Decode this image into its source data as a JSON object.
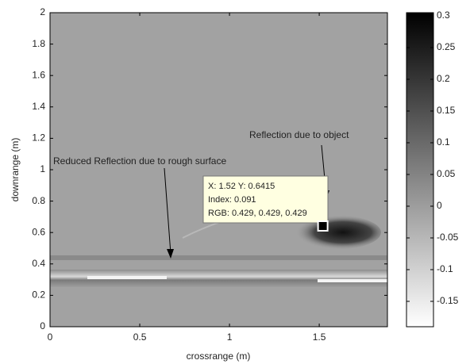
{
  "chart_data": {
    "type": "image",
    "xlabel": "crossrange (m)",
    "ylabel": "downrange (m)",
    "xlim": [
      0,
      1.88
    ],
    "ylim": [
      0,
      2
    ],
    "xticks": [
      0,
      0.5,
      1,
      1.5
    ],
    "yticks": [
      0,
      0.2,
      0.4,
      0.6,
      0.8,
      1,
      1.2,
      1.4,
      1.6,
      1.8,
      2
    ],
    "colorbar": {
      "clim": [
        -0.19,
        0.305
      ],
      "ticks": [
        -0.15,
        -0.1,
        -0.05,
        0,
        0.05,
        0.1,
        0.15,
        0.2,
        0.25,
        0.3
      ],
      "colormap": [
        "#ffffff",
        "#000000"
      ]
    },
    "annotations": [
      "Reflection due to object",
      "Reduced Reflection due to rough surface"
    ],
    "datatip": {
      "x": 1.52,
      "y": 0.6415,
      "lines": [
        "X: 1.52 Y: 0.6415",
        "Index: 0.091",
        "RGB: 0.429, 0.429, 0.429"
      ]
    }
  }
}
